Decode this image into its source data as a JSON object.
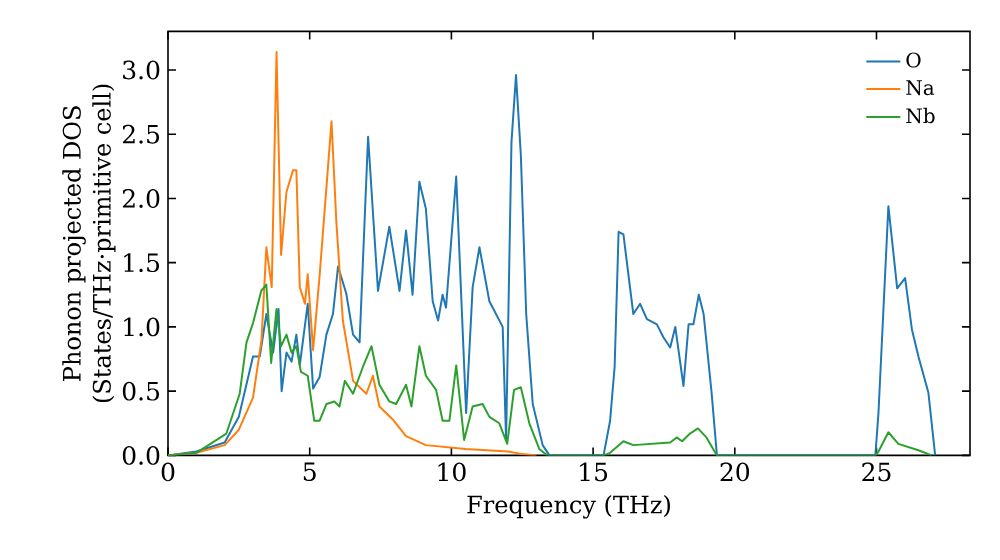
{
  "chart_data": {
    "type": "line",
    "xlabel": "Frequency (THz)",
    "ylabel": "Phonon projected DOS\n(States/THz·primitive cell)",
    "xlim": [
      0,
      28.3
    ],
    "ylim": [
      0,
      3.3
    ],
    "xticks": [
      0,
      5,
      10,
      15,
      20,
      25
    ],
    "yticks": [
      {
        "value": 0,
        "label": "0.0"
      },
      {
        "value": 0.5,
        "label": "0.5"
      },
      {
        "value": 1,
        "label": "1.0"
      },
      {
        "value": 1.5,
        "label": "1.5"
      },
      {
        "value": 2,
        "label": "2.0"
      },
      {
        "value": 2.5,
        "label": "2.5"
      },
      {
        "value": 3,
        "label": "3.0"
      }
    ],
    "legend": "top right",
    "grid": false,
    "marker": "none",
    "line_style": "solid",
    "series": [
      {
        "name": "O",
        "color": "#1f77b4",
        "x": [
          0,
          1,
          2,
          2.5,
          3.0,
          3.24,
          3.47,
          3.71,
          3.9,
          4.01,
          4.18,
          4.36,
          4.53,
          4.65,
          4.93,
          5.12,
          5.35,
          5.59,
          5.82,
          6.0,
          6.29,
          6.53,
          6.76,
          7.06,
          7.41,
          7.81,
          8.17,
          8.4,
          8.63,
          8.87,
          9.1,
          9.34,
          9.53,
          9.69,
          9.81,
          10.17,
          10.52,
          10.75,
          10.99,
          11.34,
          11.81,
          11.93,
          12.12,
          12.28,
          12.45,
          12.64,
          12.87,
          13.22,
          13.46,
          15.37,
          15.6,
          15.76,
          15.9,
          16.07,
          16.42,
          16.66,
          16.9,
          17.25,
          17.48,
          17.72,
          17.9,
          18.19,
          18.37,
          18.54,
          18.73,
          18.9,
          19.18,
          19.37,
          24.96,
          25.07,
          25.42,
          25.73,
          26.01,
          26.25,
          26.48,
          26.83,
          27.07
        ],
        "values": [
          0,
          0.03,
          0.1,
          0.3,
          0.77,
          0.77,
          1.1,
          0.8,
          1.14,
          0.5,
          0.8,
          0.73,
          0.94,
          0.7,
          1.18,
          0.52,
          0.61,
          0.94,
          1.1,
          1.47,
          1.26,
          0.94,
          0.88,
          2.48,
          1.28,
          1.78,
          1.28,
          1.75,
          1.25,
          2.13,
          1.92,
          1.2,
          1.05,
          1.25,
          1.15,
          2.17,
          0.33,
          1.31,
          1.62,
          1.2,
          1.0,
          0.12,
          2.44,
          2.96,
          2.34,
          1.1,
          0.4,
          0.08,
          0,
          0,
          0.27,
          0.69,
          1.74,
          1.72,
          1.1,
          1.18,
          1.06,
          1.02,
          0.92,
          0.84,
          1.0,
          0.54,
          1.02,
          1.02,
          1.25,
          1.1,
          0.49,
          0,
          0,
          0.33,
          1.94,
          1.3,
          1.38,
          0.98,
          0.77,
          0.49,
          0
        ]
      },
      {
        "name": "Na",
        "color": "#ff7f0e",
        "x": [
          0,
          1,
          2,
          2.5,
          3.0,
          3.3,
          3.47,
          3.66,
          3.83,
          3.99,
          4.18,
          4.41,
          4.53,
          4.65,
          4.83,
          4.93,
          5.12,
          5.35,
          5.77,
          5.94,
          6.17,
          6.53,
          7.0,
          7.23,
          7.46,
          7.93,
          8.4,
          9.1,
          10.5,
          12.0,
          12.5,
          13.0
        ],
        "values": [
          0,
          0.02,
          0.08,
          0.2,
          0.45,
          0.9,
          1.62,
          1.31,
          3.14,
          1.56,
          2.05,
          2.22,
          2.22,
          1.31,
          1.18,
          1.41,
          0.82,
          1.4,
          2.6,
          1.82,
          1.05,
          0.58,
          0.48,
          0.62,
          0.38,
          0.28,
          0.15,
          0.08,
          0.05,
          0.03,
          0.01,
          0
        ]
      },
      {
        "name": "Nb",
        "color": "#2ca02c",
        "x": [
          0,
          1,
          2.06,
          2.53,
          2.77,
          3.0,
          3.29,
          3.47,
          3.64,
          3.83,
          3.99,
          4.18,
          4.36,
          4.53,
          4.69,
          4.93,
          5.16,
          5.35,
          5.59,
          5.87,
          6.05,
          6.24,
          6.53,
          6.88,
          7.18,
          7.46,
          7.81,
          8.05,
          8.4,
          8.59,
          8.87,
          9.1,
          9.46,
          9.69,
          9.93,
          10.17,
          10.45,
          10.75,
          11.1,
          11.34,
          11.69,
          11.97,
          12.21,
          12.45,
          12.75,
          13.1,
          13.38,
          15.37,
          15.6,
          16.07,
          16.42,
          17.72,
          17.95,
          18.14,
          18.42,
          18.7,
          19.0,
          19.37,
          24.96,
          25.07,
          25.42,
          25.77,
          26.48,
          26.95
        ],
        "values": [
          0,
          0.02,
          0.17,
          0.48,
          0.88,
          1.03,
          1.28,
          1.33,
          0.72,
          1.14,
          0.85,
          0.94,
          0.8,
          0.85,
          0.65,
          0.62,
          0.27,
          0.27,
          0.4,
          0.42,
          0.38,
          0.58,
          0.48,
          0.69,
          0.85,
          0.55,
          0.42,
          0.4,
          0.55,
          0.38,
          0.85,
          0.62,
          0.51,
          0.27,
          0.27,
          0.7,
          0.12,
          0.38,
          0.4,
          0.3,
          0.25,
          0.09,
          0.51,
          0.53,
          0.25,
          0.05,
          0,
          0,
          0.02,
          0.11,
          0.08,
          0.1,
          0.14,
          0.11,
          0.17,
          0.21,
          0.14,
          0,
          0,
          0.03,
          0.18,
          0.09,
          0.04,
          0
        ]
      }
    ]
  }
}
